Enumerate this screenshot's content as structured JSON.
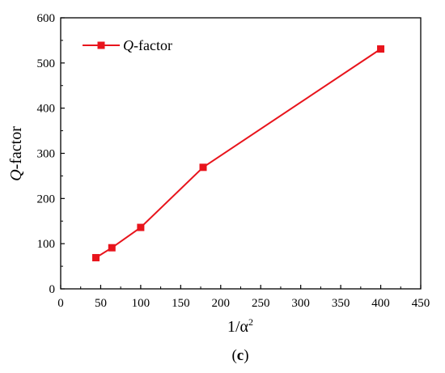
{
  "chart_data": {
    "type": "line",
    "x": [
      44,
      64,
      100,
      178,
      400
    ],
    "series": [
      {
        "name": "Q-factor",
        "values": [
          69,
          91,
          136,
          269,
          531
        ],
        "color": "#e8141c",
        "marker": "square"
      }
    ],
    "xlim": [
      0,
      450
    ],
    "ylim": [
      0,
      600
    ],
    "x_ticks": [
      0,
      50,
      100,
      150,
      200,
      250,
      300,
      350,
      400,
      450
    ],
    "y_ticks": [
      0,
      100,
      200,
      300,
      400,
      500,
      600
    ],
    "x_tick_labels": [
      "0",
      "50",
      "100",
      "150",
      "200",
      "250",
      "300",
      "350",
      "400",
      "450"
    ],
    "y_tick_labels": [
      "0",
      "100",
      "200",
      "300",
      "400",
      "500",
      "600"
    ],
    "xlabel": {
      "base": "1/α",
      "sup": "2"
    },
    "ylabel": {
      "italic": "Q",
      "rest": "-factor"
    },
    "legend": {
      "position": "top-left",
      "entries": [
        {
          "italic": "Q",
          "rest": "-factor"
        }
      ]
    },
    "grid": false
  },
  "caption": {
    "open": "(",
    "letter": "c",
    "close": ")"
  }
}
